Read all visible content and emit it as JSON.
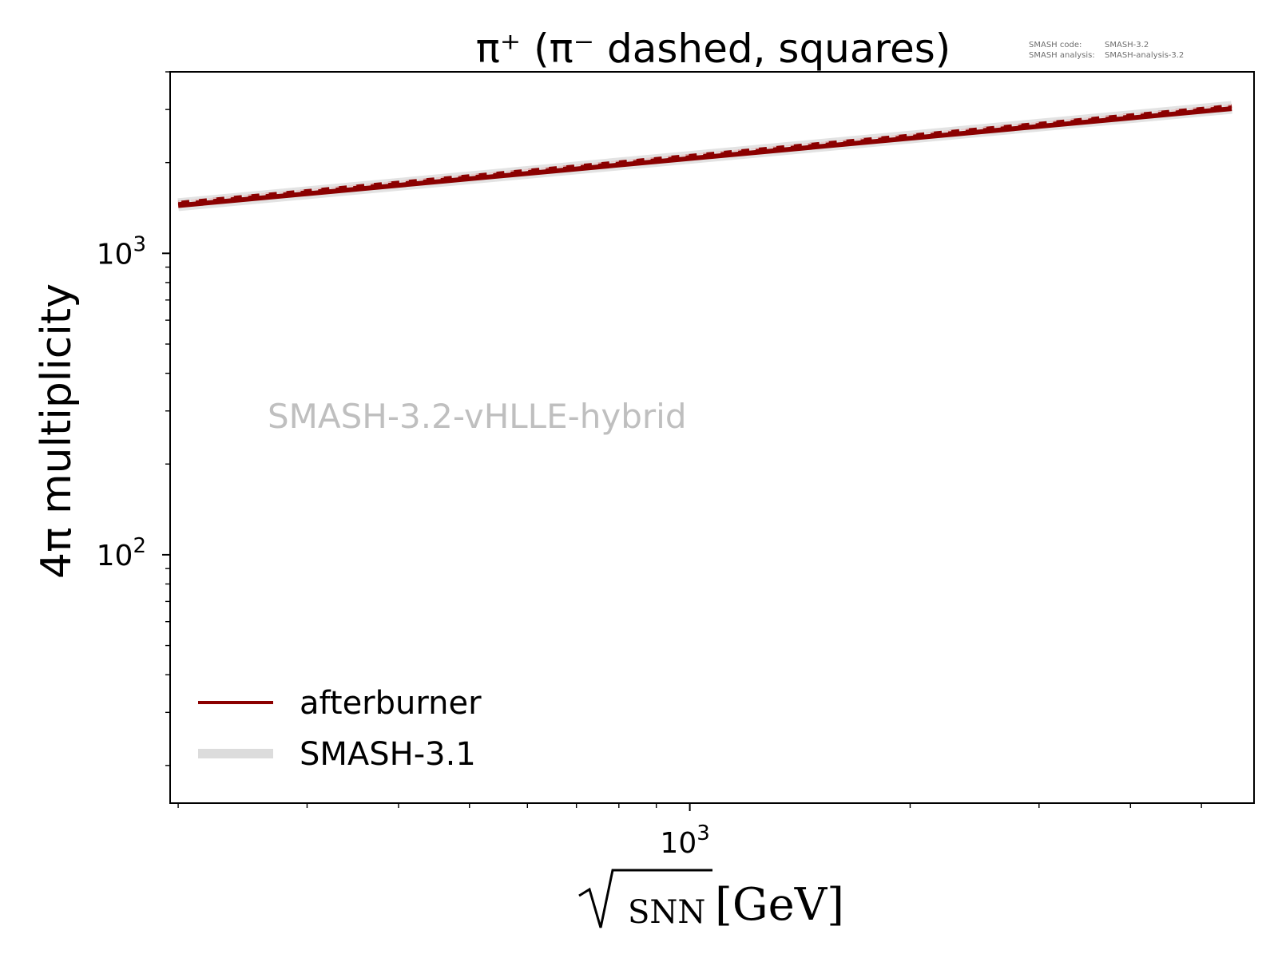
{
  "chart_data": {
    "type": "line",
    "title": "π⁺ (π⁻ dashed, squares)",
    "xlabel_prefix": "√",
    "xlabel_sub": "SNN",
    "xlabel_unit": "[GeV]",
    "ylabel": "4π multiplicity",
    "xscale": "log",
    "yscale": "log",
    "xlim": [
      195,
      5900
    ],
    "ylim": [
      15,
      4000
    ],
    "x_tick_labels": [
      {
        "value": 1000,
        "base": "10",
        "exp": "3"
      }
    ],
    "y_tick_labels": [
      {
        "value": 100,
        "base": "10",
        "exp": "2"
      },
      {
        "value": 1000,
        "base": "10",
        "exp": "3"
      }
    ],
    "grid": false,
    "legend_position": "lower-left",
    "watermark": "SMASH-3.2-vHLLE-hybrid",
    "meta": {
      "code_label": "SMASH code:",
      "code_value": "SMASH-3.2",
      "analysis_label": "SMASH analysis:",
      "analysis_value": "SMASH-analysis-3.2"
    },
    "series": [
      {
        "name": "SMASH-3.1",
        "role": "reference band",
        "color": "#d9d9d9",
        "x": [
          200,
          5500
        ],
        "y": [
          1450,
          3050
        ]
      },
      {
        "name": "afterburner",
        "role": "pi+ solid",
        "color": "#8b0000",
        "x": [
          200,
          5500
        ],
        "y": [
          1440,
          3020
        ]
      },
      {
        "name": "",
        "role": "pi- dashed",
        "color": "#8b0000",
        "x": [
          200,
          5500
        ],
        "y": [
          1470,
          3080
        ]
      }
    ],
    "legend": [
      {
        "label": "afterburner",
        "color": "#8b0000",
        "style": "solid"
      },
      {
        "label": "SMASH-3.1",
        "color": "#dcdcdc",
        "style": "band"
      }
    ]
  }
}
